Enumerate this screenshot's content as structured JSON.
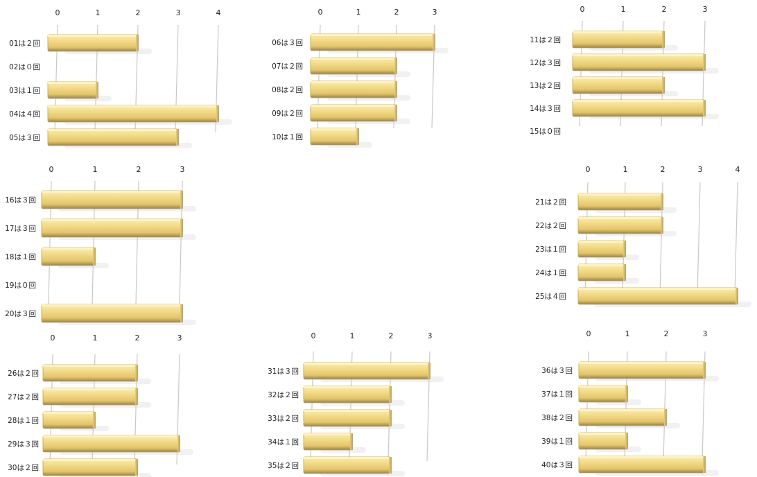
{
  "chart_data": [
    {
      "type": "bar",
      "orientation": "horizontal",
      "bar_color": "#f0d98a",
      "categories": [
        "01は２回",
        "02は０回",
        "03は１回",
        "04は４回",
        "05は３回"
      ],
      "values": [
        2,
        0,
        1,
        4,
        3
      ],
      "xlim": [
        0,
        4
      ],
      "ticks": [
        0,
        1,
        2,
        3,
        4
      ]
    },
    {
      "type": "bar",
      "orientation": "horizontal",
      "bar_color": "#f0d98a",
      "categories": [
        "06は３回",
        "07は２回",
        "08は２回",
        "09は２回",
        "10は１回"
      ],
      "values": [
        3,
        2,
        2,
        2,
        1
      ],
      "xlim": [
        0,
        3
      ],
      "ticks": [
        0,
        1,
        2,
        3
      ]
    },
    {
      "type": "bar",
      "orientation": "horizontal",
      "bar_color": "#f0d98a",
      "categories": [
        "11は２回",
        "12は３回",
        "13は２回",
        "14は３回",
        "15は０回"
      ],
      "values": [
        2,
        3,
        2,
        3,
        0
      ],
      "xlim": [
        0,
        3
      ],
      "ticks": [
        0,
        1,
        2,
        3
      ]
    },
    {
      "type": "bar",
      "orientation": "horizontal",
      "bar_color": "#f0d98a",
      "categories": [
        "16は３回",
        "17は３回",
        "18は１回",
        "19は０回",
        "20は３回"
      ],
      "values": [
        3,
        3,
        1,
        0,
        3
      ],
      "xlim": [
        0,
        3
      ],
      "ticks": [
        0,
        1,
        2,
        3
      ]
    },
    {
      "type": "bar",
      "orientation": "horizontal",
      "bar_color": "#f0d98a",
      "categories": [
        "21は２回",
        "22は２回",
        "23は１回",
        "24は１回",
        "25は４回"
      ],
      "values": [
        2,
        2,
        1,
        1,
        4
      ],
      "xlim": [
        0,
        4
      ],
      "ticks": [
        0,
        1,
        2,
        3,
        4
      ]
    },
    {
      "type": "bar",
      "orientation": "horizontal",
      "bar_color": "#f0d98a",
      "categories": [
        "26は２回",
        "27は２回",
        "28は１回",
        "29は３回",
        "30は２回"
      ],
      "values": [
        2,
        2,
        1,
        3,
        2
      ],
      "xlim": [
        0,
        3
      ],
      "ticks": [
        0,
        1,
        2,
        3
      ]
    },
    {
      "type": "bar",
      "orientation": "horizontal",
      "bar_color": "#f0d98a",
      "categories": [
        "31は３回",
        "32は２回",
        "33は２回",
        "34は１回",
        "35は２回"
      ],
      "values": [
        3,
        2,
        2,
        1,
        2
      ],
      "xlim": [
        0,
        3
      ],
      "ticks": [
        0,
        1,
        2,
        3
      ]
    },
    {
      "type": "bar",
      "orientation": "horizontal",
      "bar_color": "#f0d98a",
      "categories": [
        "36は３回",
        "37は１回",
        "38は２回",
        "39は１回",
        "40は３回"
      ],
      "values": [
        3,
        1,
        2,
        1,
        3
      ],
      "xlim": [
        0,
        3
      ],
      "ticks": [
        0,
        1,
        2,
        3
      ]
    }
  ]
}
